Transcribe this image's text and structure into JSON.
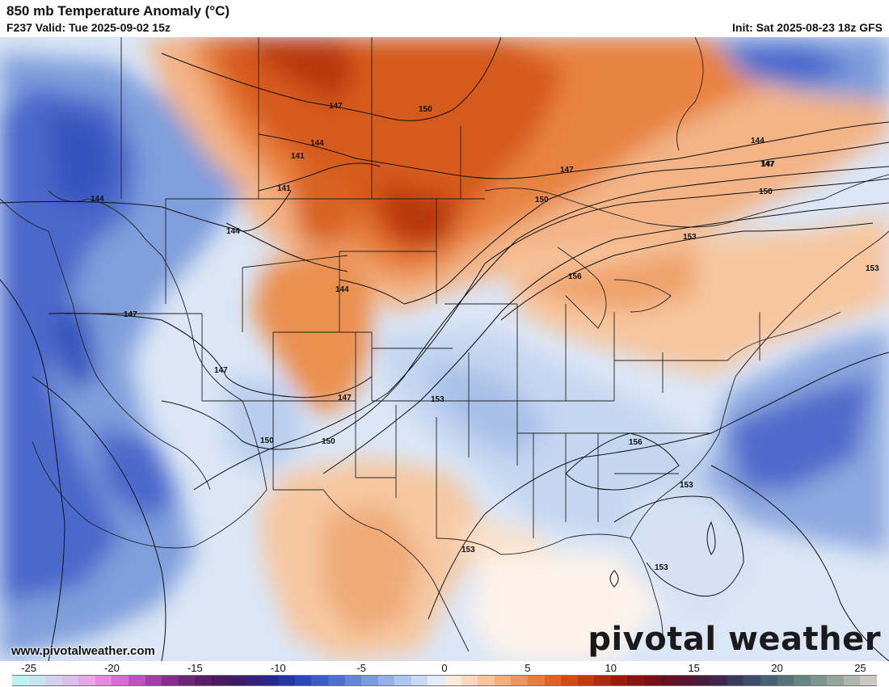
{
  "header": {
    "title": "850 mb Temperature Anomaly (°C)",
    "valid": "F237 Valid: Tue 2025-09-02 15z",
    "init": "Init: Sat 2025-08-23 18z GFS"
  },
  "footer": {
    "website": "www.pivotalweather.com",
    "brand": "pivotal weather"
  },
  "colorbar": {
    "ticks": [
      "-25",
      "-20",
      "-15",
      "-10",
      "-5",
      "0",
      "5",
      "10",
      "15",
      "20",
      "25"
    ],
    "tick_values": [
      -25,
      -20,
      -15,
      -10,
      -5,
      0,
      5,
      10,
      15,
      20,
      25
    ],
    "min": -26,
    "max": 26,
    "colors": [
      "#bdf2f5",
      "#c7e4f1",
      "#d2d1ee",
      "#dcbeea",
      "#e6a7e3",
      "#e78ade",
      "#dc6ad4",
      "#c04fc0",
      "#a33da8",
      "#872d90",
      "#6e2479",
      "#5a1e66",
      "#4a1a5c",
      "#3d1b66",
      "#30217a",
      "#27288f",
      "#2337a6",
      "#2a49b9",
      "#3a5cc6",
      "#4d70ce",
      "#6386d6",
      "#7a9cde",
      "#93b1e6",
      "#adc6ec",
      "#c8daf2",
      "#e2ecf8",
      "#fbe9da",
      "#fbd8bc",
      "#f8c49c",
      "#f4ad7b",
      "#ef955c",
      "#e87c3e",
      "#df6324",
      "#d24b14",
      "#c1390d",
      "#ad2a0b",
      "#9a1d0b",
      "#87140f",
      "#751016",
      "#651020",
      "#571530",
      "#4a1c40",
      "#3f2650",
      "#3a3a5f",
      "#3d4d6b",
      "#456173",
      "#52737a",
      "#648582",
      "#7a968d",
      "#93a69b",
      "#aeb7ab",
      "#c9c9c0"
    ]
  },
  "map": {
    "contour_labels": [
      "147",
      "150",
      "144",
      "141",
      "141",
      "144",
      "144",
      "147",
      "147",
      "144",
      "147",
      "150",
      "153",
      "156",
      "153",
      "147",
      "150",
      "150",
      "147",
      "153",
      "156",
      "153",
      "153",
      "144",
      "147",
      "150",
      "153"
    ],
    "colors": {
      "cold_strong": "#4a64c9",
      "cold_mid": "#86a4de",
      "cold_light": "#c6d7f0",
      "neutral": "#ffffff",
      "warm_light": "#fbdcc2",
      "warm_mid": "#f2a06a",
      "warm_strong": "#e06a28",
      "warm_max": "#c44410"
    }
  }
}
